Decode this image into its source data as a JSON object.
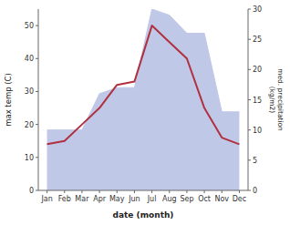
{
  "chart_data": {
    "type": "line",
    "categories": [
      "Jan",
      "Feb",
      "Mar",
      "Apr",
      "May",
      "Jun",
      "Jul",
      "Aug",
      "Sep",
      "Oct",
      "Nov",
      "Dec"
    ],
    "series": [
      {
        "type": "line",
        "color": "#b03040",
        "values": [
          14,
          15,
          20,
          25,
          32,
          33,
          50,
          45,
          40,
          25,
          16,
          14
        ]
      },
      {
        "type": "area",
        "axis": "y2",
        "color": "#c0c8e8",
        "values": [
          10,
          10,
          10,
          16,
          17,
          17,
          30,
          29,
          26,
          26,
          13,
          13
        ]
      }
    ],
    "x_label": "date (month)",
    "y_label": "max temp (C)",
    "y2_label": "med. precipitation\n(kg/m2)",
    "ylim": [
      0,
      55
    ],
    "yticks": [
      0,
      10,
      20,
      30,
      40,
      50
    ],
    "y2lim": [
      0,
      30
    ],
    "y2ticks": [
      0,
      5,
      10,
      15,
      20,
      25,
      30
    ],
    "grid": false
  }
}
